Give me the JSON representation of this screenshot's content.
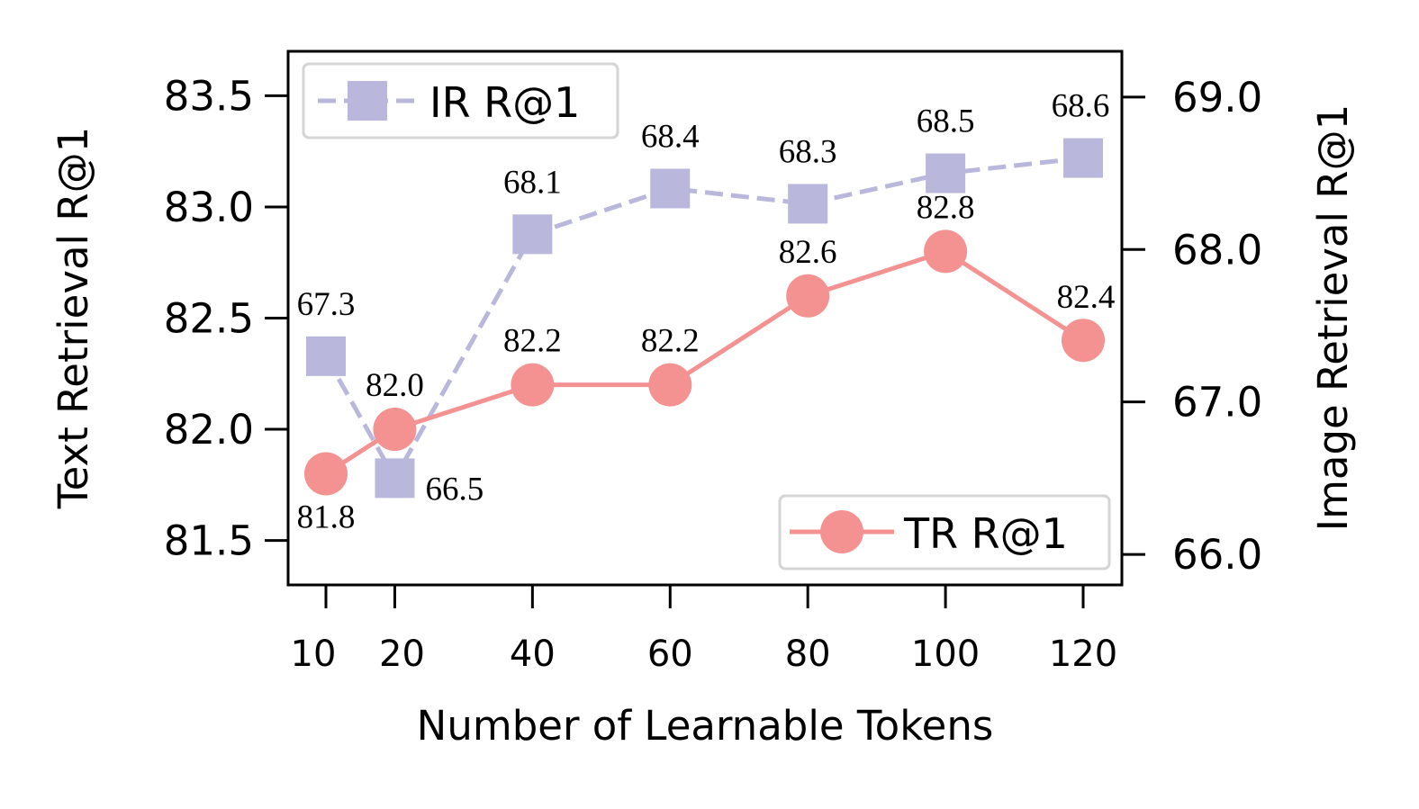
{
  "chart_data": {
    "type": "line",
    "xlabel": "Number of Learnable Tokens",
    "ylabel_left": "Text Retrieval R@1",
    "ylabel_right": "Image Retrieval R@1",
    "x": [
      10,
      20,
      40,
      60,
      80,
      100,
      120
    ],
    "x_ticks": [
      "10",
      "20",
      "40",
      "60",
      "80",
      "100",
      "120"
    ],
    "ylim_left": [
      81.3,
      83.7
    ],
    "yticks_left": [
      "81.5",
      "82.0",
      "82.5",
      "83.0",
      "83.5"
    ],
    "ylim_right": [
      65.8,
      69.3
    ],
    "yticks_right": [
      "66.0",
      "67.0",
      "68.0",
      "69.0"
    ],
    "grid": false,
    "series": [
      {
        "name": "TR R@1",
        "axis": "left",
        "values": [
          81.8,
          82.0,
          82.2,
          82.2,
          82.6,
          82.8,
          82.4
        ],
        "labels": [
          "81.8",
          "82.0",
          "82.2",
          "82.2",
          "82.6",
          "82.8",
          "82.4"
        ],
        "color": "#f49292",
        "marker": "circle",
        "linestyle": "solid",
        "legend_position": "bottom-right"
      },
      {
        "name": "IR R@1",
        "axis": "right",
        "values": [
          67.3,
          66.5,
          68.1,
          68.4,
          68.3,
          68.5,
          68.6
        ],
        "labels": [
          "67.3",
          "66.5",
          "68.1",
          "68.4",
          "68.3",
          "68.5",
          "68.6"
        ],
        "color": "#b9b7dc",
        "marker": "square",
        "linestyle": "dashed",
        "legend_position": "top-left"
      }
    ]
  }
}
